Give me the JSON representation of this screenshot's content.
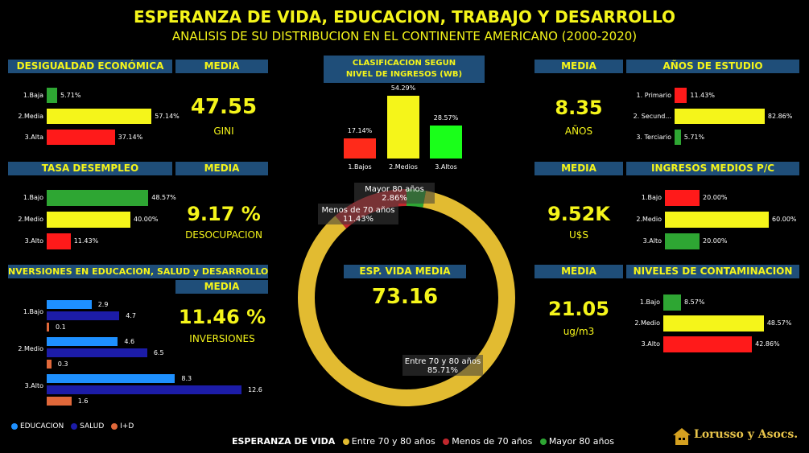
{
  "title": "ESPERANZA DE VIDA, EDUCACION, TRABAJO Y DESARROLLO",
  "subtitle": "ANALISIS DE SU DISTRIBUCION EN EL CONTINENTE AMERICANO (2000-2020)",
  "media_label": "MEDIA",
  "colors": {
    "yellow": "#f5f51a",
    "green": "#2ea633",
    "red": "#ff1a1a",
    "navy": "#1f4e79",
    "gold": "#e2bb31"
  },
  "desigualdad": {
    "header": "DESIGUALDAD ECONÓMICA",
    "value": "47.55",
    "unit": "GINI"
  },
  "desempleo": {
    "header": "TASA DESEMPLEO",
    "value": "9.17 %",
    "unit": "DESOCUPACION"
  },
  "inversiones": {
    "header": "NVERSIONES EN EDUCACION, SALUD y DESARROLLO",
    "value": "11.46 %",
    "unit": "INVERSIONES"
  },
  "clasificacion": {
    "header_line1": "CLASIFICACION SEGUN",
    "header_line2": "NIVEL DE INGRESOS (WB)"
  },
  "esp_vida": {
    "header": "ESP. VIDA MEDIA",
    "value": "73.16"
  },
  "estudio": {
    "header": "AÑOS DE ESTUDIO",
    "value": "8.35",
    "unit": "AÑOS"
  },
  "ingresos": {
    "header": "INGRESOS MEDIOS P/C",
    "value": "9.52K",
    "unit": "U$S"
  },
  "contaminacion": {
    "header": "NIVELES DE CONTAMINACION",
    "value": "21.05",
    "unit": "ug/m3"
  },
  "bottom_legend": {
    "title": "ESPERANZA DE VIDA",
    "items": [
      "Entre 70 y 80 años",
      "Menos de 70 años",
      "Mayor 80 años"
    ]
  },
  "inv_legend": [
    "EDUCACION",
    "SALUD",
    "I+D"
  ],
  "logo": "Lorusso y Asocs.",
  "chart_data": [
    {
      "id": "desigualdad",
      "type": "bar",
      "orientation": "horizontal",
      "categories": [
        "1.Baja",
        "2.Media",
        "3.Alta"
      ],
      "values": [
        5.71,
        57.14,
        37.14
      ],
      "labels": [
        "5.71%",
        "57.14%",
        "37.14%"
      ],
      "colors": [
        "#2ea633",
        "#f5f51a",
        "#ff1a1a"
      ]
    },
    {
      "id": "desempleo",
      "type": "bar",
      "orientation": "horizontal",
      "categories": [
        "1.Bajo",
        "2.Medio",
        "3.Alto"
      ],
      "values": [
        48.57,
        40.0,
        11.43
      ],
      "labels": [
        "48.57%",
        "40.00%",
        "11.43%"
      ],
      "colors": [
        "#2ea633",
        "#f5f51a",
        "#ff1a1a"
      ]
    },
    {
      "id": "inversiones",
      "type": "bar",
      "orientation": "horizontal",
      "categories": [
        "1.Bajo",
        "2.Medio",
        "3.Alto"
      ],
      "series": [
        {
          "name": "EDUCACION",
          "values": [
            2.9,
            4.6,
            8.3
          ],
          "color": "#1e90ff"
        },
        {
          "name": "SALUD",
          "values": [
            4.7,
            6.5,
            12.6
          ],
          "color": "#1c1ca8"
        },
        {
          "name": "I+D",
          "values": [
            0.1,
            0.3,
            1.6
          ],
          "color": "#e0683a"
        }
      ]
    },
    {
      "id": "clasificacion",
      "type": "bar",
      "categories": [
        "1.Bajos",
        "2.Medios",
        "3.Altos"
      ],
      "values": [
        17.14,
        54.29,
        28.57
      ],
      "labels": [
        "17.14%",
        "54.29%",
        "28.57%"
      ],
      "colors": [
        "#ff2a1a",
        "#f5f51a",
        "#1aff1a"
      ]
    },
    {
      "id": "esp_vida",
      "type": "pie",
      "categories": [
        "Entre 70 y 80 años",
        "Menos de 70 años",
        "Mayor 80 años"
      ],
      "values": [
        85.71,
        11.43,
        2.86
      ],
      "labels": [
        "85.71%",
        "11.43%",
        "2.86%"
      ],
      "colors": [
        "#e2bb31",
        "#c1272d",
        "#2ea633"
      ]
    },
    {
      "id": "estudio",
      "type": "bar",
      "orientation": "horizontal",
      "categories": [
        "1. Primario",
        "2. Secund...",
        "3. Terciario"
      ],
      "values": [
        11.43,
        82.86,
        5.71
      ],
      "labels": [
        "11.43%",
        "82.86%",
        "5.71%"
      ],
      "colors": [
        "#ff1a1a",
        "#f5f51a",
        "#2ea633"
      ]
    },
    {
      "id": "ingresos",
      "type": "bar",
      "orientation": "horizontal",
      "categories": [
        "1.Bajo",
        "2.Medio",
        "3.Alto"
      ],
      "values": [
        20.0,
        60.0,
        20.0
      ],
      "labels": [
        "20.00%",
        "60.00%",
        "20.00%"
      ],
      "colors": [
        "#ff1a1a",
        "#f5f51a",
        "#2ea633"
      ]
    },
    {
      "id": "contaminacion",
      "type": "bar",
      "orientation": "horizontal",
      "categories": [
        "1.Bajo",
        "2.Medio",
        "3.Alto"
      ],
      "values": [
        8.57,
        48.57,
        42.86
      ],
      "labels": [
        "8.57%",
        "48.57%",
        "42.86%"
      ],
      "colors": [
        "#2ea633",
        "#f5f51a",
        "#ff1a1a"
      ]
    }
  ]
}
